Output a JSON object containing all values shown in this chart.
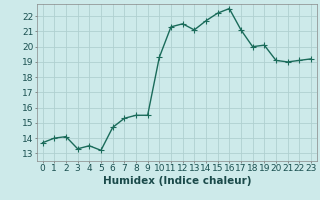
{
  "x": [
    0,
    1,
    2,
    3,
    4,
    5,
    6,
    7,
    8,
    9,
    10,
    11,
    12,
    13,
    14,
    15,
    16,
    17,
    18,
    19,
    20,
    21,
    22,
    23
  ],
  "y": [
    13.7,
    14.0,
    14.1,
    13.3,
    13.5,
    13.2,
    14.7,
    15.3,
    15.5,
    15.5,
    19.3,
    21.3,
    21.5,
    21.1,
    21.7,
    22.2,
    22.5,
    21.1,
    20.0,
    20.1,
    19.1,
    19.0,
    19.1,
    19.2
  ],
  "line_color": "#1a6b5a",
  "marker_color": "#1a6b5a",
  "bg_color": "#cdeaea",
  "grid_color": "#b0d0d0",
  "xlabel": "Humidex (Indice chaleur)",
  "xlim": [
    -0.5,
    23.5
  ],
  "ylim": [
    12.5,
    22.8
  ],
  "yticks": [
    13,
    14,
    15,
    16,
    17,
    18,
    19,
    20,
    21,
    22
  ],
  "xticks": [
    0,
    1,
    2,
    3,
    4,
    5,
    6,
    7,
    8,
    9,
    10,
    11,
    12,
    13,
    14,
    15,
    16,
    17,
    18,
    19,
    20,
    21,
    22,
    23
  ],
  "xlabel_fontsize": 7.5,
  "tick_fontsize": 6.5,
  "marker_size": 2.5,
  "line_width": 1.0
}
